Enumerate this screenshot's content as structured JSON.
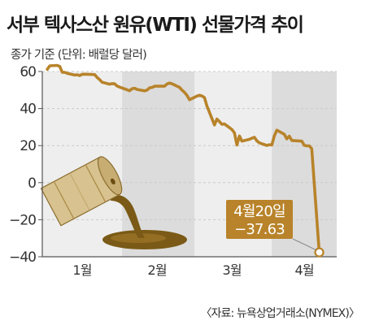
{
  "title": "서부 텍사스산 원유(WTI) 선물가격 추이",
  "subtitle": "종가 기준 (단위: 배럴당 달러)",
  "source": "〈자료: 뉴욕상업거래소(NYMEX)〉",
  "colors": {
    "line": "#b8832a",
    "plot_background": "#eeeeee",
    "band": "#dcdcdc",
    "callout_background": "#b8832a",
    "callout_text": "#ffffff"
  },
  "chart_data": {
    "type": "line",
    "title": "서부 텍사스산 원유(WTI) 선물가격 추이",
    "subtitle": "종가 기준 (단위: 배럴당 달러)",
    "xlabel": "",
    "ylabel": "",
    "ylim": [
      -40,
      60
    ],
    "yticks": [
      -40,
      -20,
      0,
      20,
      40,
      60
    ],
    "x_tick_labels": [
      "1월",
      "2월",
      "3월",
      "4월"
    ],
    "grid": "horizontal",
    "series": [
      {
        "name": "",
        "x": [
          "2020-01-02",
          "2020-01-03",
          "2020-01-06",
          "2020-01-07",
          "2020-01-08",
          "2020-01-09",
          "2020-01-10",
          "2020-01-13",
          "2020-01-14",
          "2020-01-15",
          "2020-01-16",
          "2020-01-17",
          "2020-01-21",
          "2020-01-22",
          "2020-01-23",
          "2020-01-24",
          "2020-01-27",
          "2020-01-28",
          "2020-01-29",
          "2020-01-30",
          "2020-01-31",
          "2020-02-03",
          "2020-02-04",
          "2020-02-05",
          "2020-02-06",
          "2020-02-07",
          "2020-02-10",
          "2020-02-11",
          "2020-02-12",
          "2020-02-13",
          "2020-02-14",
          "2020-02-18",
          "2020-02-19",
          "2020-02-20",
          "2020-02-21",
          "2020-02-24",
          "2020-02-25",
          "2020-02-26",
          "2020-02-27",
          "2020-02-28",
          "2020-03-02",
          "2020-03-03",
          "2020-03-04",
          "2020-03-05",
          "2020-03-06",
          "2020-03-09",
          "2020-03-10",
          "2020-03-11",
          "2020-03-12",
          "2020-03-13",
          "2020-03-16",
          "2020-03-17",
          "2020-03-18",
          "2020-03-19",
          "2020-03-20",
          "2020-03-23",
          "2020-03-24",
          "2020-03-25",
          "2020-03-26",
          "2020-03-27",
          "2020-03-30",
          "2020-03-31",
          "2020-04-01",
          "2020-04-02",
          "2020-04-03",
          "2020-04-06",
          "2020-04-07",
          "2020-04-08",
          "2020-04-09",
          "2020-04-13",
          "2020-04-14",
          "2020-04-15",
          "2020-04-16",
          "2020-04-17",
          "2020-04-20"
        ],
        "values": [
          61.18,
          63.05,
          63.27,
          62.7,
          59.61,
          59.56,
          59.04,
          58.08,
          58.23,
          57.81,
          58.52,
          58.54,
          58.34,
          56.74,
          55.59,
          54.19,
          53.14,
          53.48,
          53.33,
          52.14,
          51.56,
          50.11,
          49.61,
          50.75,
          50.95,
          50.32,
          49.57,
          49.94,
          51.17,
          51.42,
          52.05,
          52.05,
          53.29,
          53.78,
          53.38,
          51.43,
          49.9,
          48.73,
          47.09,
          44.76,
          46.75,
          47.18,
          46.78,
          45.9,
          41.28,
          31.13,
          34.36,
          32.98,
          31.5,
          31.73,
          28.7,
          26.95,
          20.37,
          25.22,
          22.43,
          23.36,
          24.01,
          24.49,
          22.6,
          21.51,
          20.09,
          20.48,
          20.31,
          25.32,
          28.34,
          26.08,
          23.63,
          25.09,
          22.76,
          22.41,
          20.11,
          19.87,
          19.87,
          18.27,
          -37.63
        ]
      }
    ],
    "annotations": [
      {
        "x": "2020-04-20",
        "y": -37.63,
        "label_date": "4월20일",
        "label_value": "−37.63"
      }
    ]
  }
}
